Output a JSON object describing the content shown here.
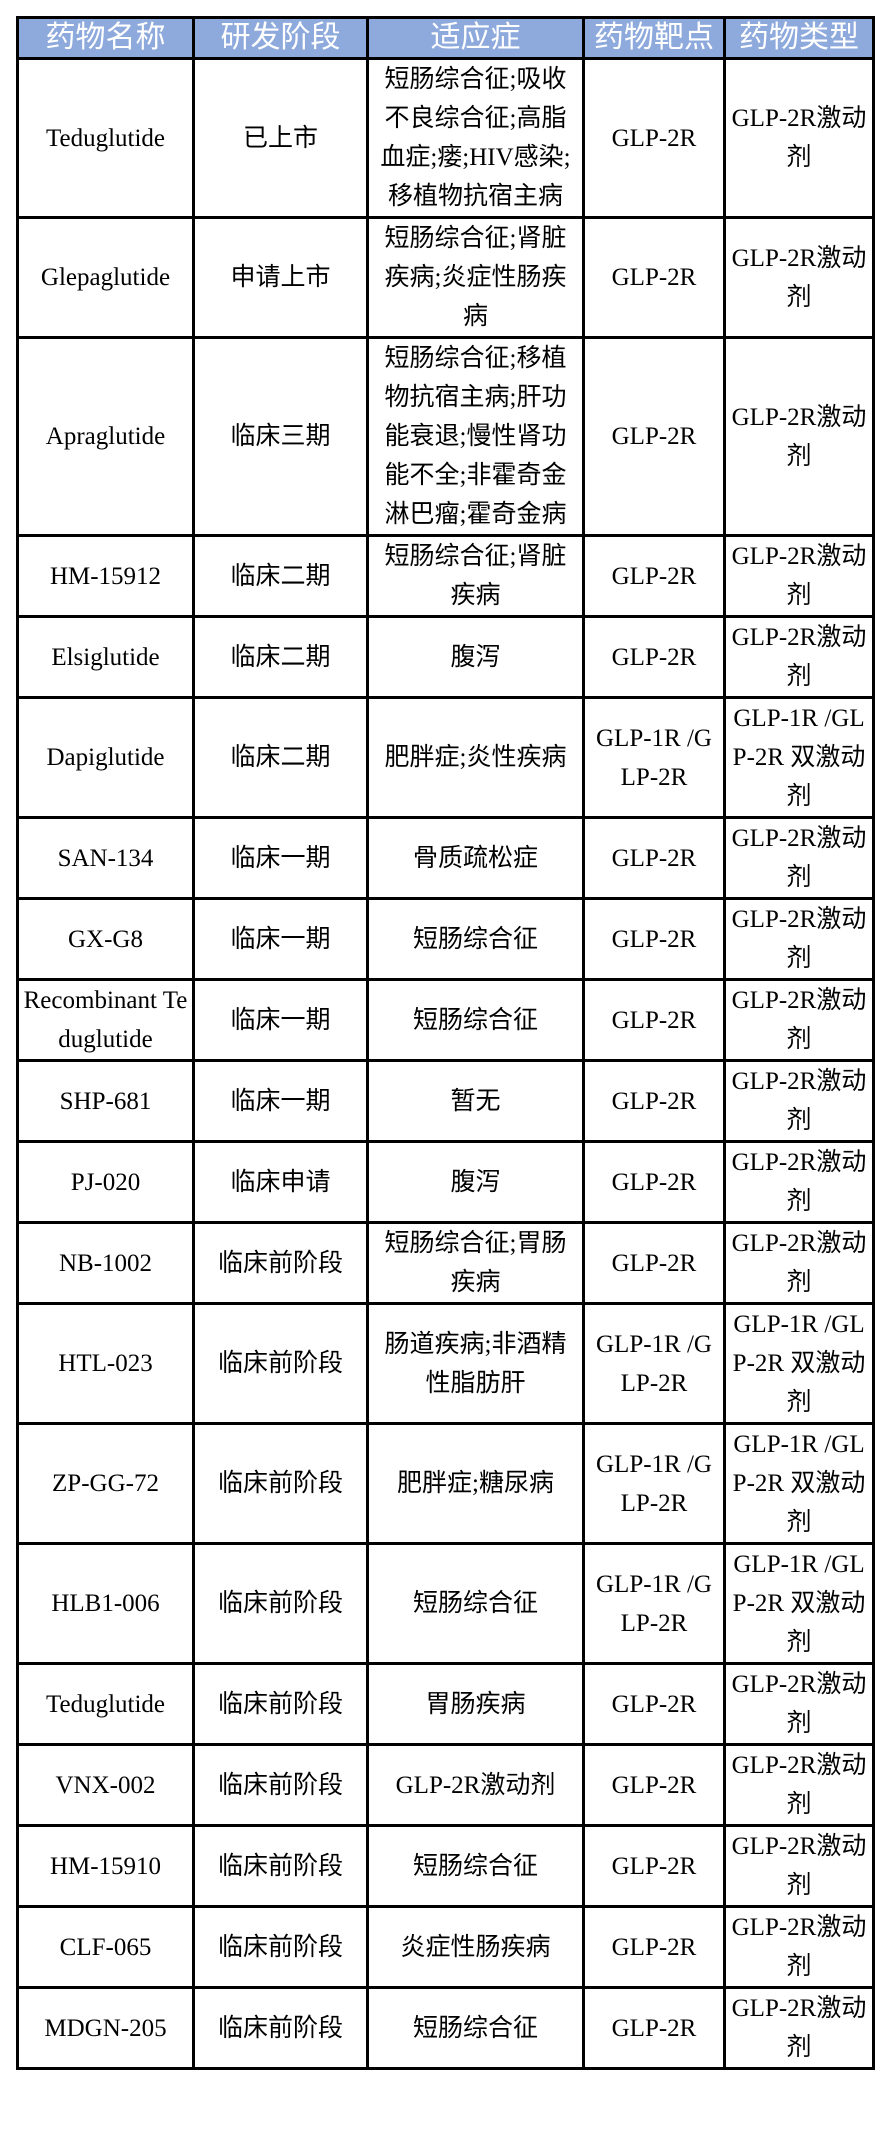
{
  "headers": [
    "药物名称",
    "研发阶段",
    "适应症",
    "药物靶点",
    "药物类型"
  ],
  "rows": [
    [
      "Teduglutide",
      "已上市",
      "短肠综合征;吸收不良综合征;高脂血症;瘘;HIV感染;移植物抗宿主病",
      "GLP-2R",
      "GLP-2R激动剂"
    ],
    [
      "Glepaglutide",
      "申请上市",
      "短肠综合征;肾脏疾病;炎症性肠疾病",
      "GLP-2R",
      "GLP-2R激动剂"
    ],
    [
      "Apraglutide",
      "临床三期",
      "短肠综合征;移植物抗宿主病;肝功能衰退;慢性肾功能不全;非霍奇金淋巴瘤;霍奇金病",
      "GLP-2R",
      "GLP-2R激动剂"
    ],
    [
      "HM-15912",
      "临床二期",
      "短肠综合征;肾脏疾病",
      "GLP-2R",
      "GLP-2R激动剂"
    ],
    [
      "Elsiglutide",
      "临床二期",
      "腹泻",
      "GLP-2R",
      "GLP-2R激动剂"
    ],
    [
      "Dapiglutide",
      "临床二期",
      "肥胖症;炎性疾病",
      "GLP-1R /GLP-2R",
      "GLP-1R /GLP-2R 双激动剂"
    ],
    [
      "SAN-134",
      "临床一期",
      "骨质疏松症",
      "GLP-2R",
      "GLP-2R激动剂"
    ],
    [
      "GX-G8",
      "临床一期",
      "短肠综合征",
      "GLP-2R",
      "GLP-2R激动剂"
    ],
    [
      "Recombinant Teduglutide",
      "临床一期",
      "短肠综合征",
      "GLP-2R",
      "GLP-2R激动剂"
    ],
    [
      "SHP-681",
      "临床一期",
      "暂无",
      "GLP-2R",
      "GLP-2R激动剂"
    ],
    [
      "PJ-020",
      "临床申请",
      "腹泻",
      "GLP-2R",
      "GLP-2R激动剂"
    ],
    [
      "NB-1002",
      "临床前阶段",
      "短肠综合征;胃肠疾病",
      "GLP-2R",
      "GLP-2R激动剂"
    ],
    [
      "HTL-023",
      "临床前阶段",
      "肠道疾病;非酒精性脂肪肝",
      "GLP-1R /GLP-2R",
      "GLP-1R /GLP-2R 双激动剂"
    ],
    [
      "ZP-GG-72",
      "临床前阶段",
      "肥胖症;糖尿病",
      "GLP-1R /GLP-2R",
      "GLP-1R /GLP-2R 双激动剂"
    ],
    [
      "HLB1-006",
      "临床前阶段",
      "短肠综合征",
      "GLP-1R /GLP-2R",
      "GLP-1R /GLP-2R 双激动剂"
    ],
    [
      "Teduglutide",
      "临床前阶段",
      "胃肠疾病",
      "GLP-2R",
      "GLP-2R激动剂"
    ],
    [
      "VNX-002",
      "临床前阶段",
      "GLP-2R激动剂",
      "GLP-2R",
      "GLP-2R激动剂"
    ],
    [
      "HM-15910",
      "临床前阶段",
      "短肠综合征",
      "GLP-2R",
      "GLP-2R激动剂"
    ],
    [
      "CLF-065",
      "临床前阶段",
      "炎症性肠疾病",
      "GLP-2R",
      "GLP-2R激动剂"
    ],
    [
      "MDGN-205",
      "临床前阶段",
      "短肠综合征",
      "GLP-2R",
      "GLP-2R激动剂"
    ]
  ]
}
